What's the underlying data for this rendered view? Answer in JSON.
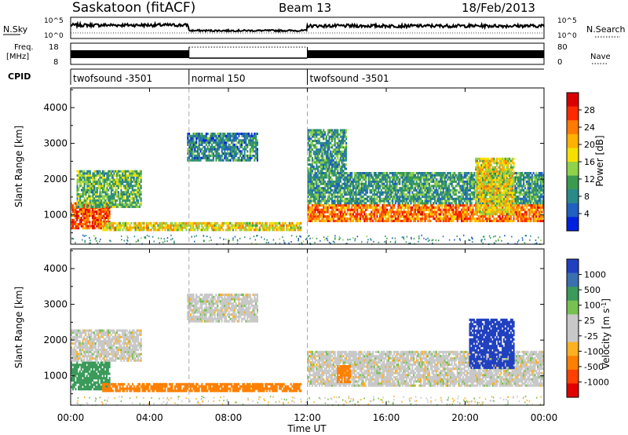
{
  "header": {
    "station": "Saskatoon (fitACF)",
    "beam": "Beam 13",
    "date": "18/Feb/2013"
  },
  "summary_panels": {
    "nsky_label": "N.Sky",
    "nsearch_label": "N.Search",
    "freq_label_line1": "Freq.",
    "freq_label_line2": "[MHz]",
    "nave_label": "Nave",
    "cpid_label": "CPID",
    "nsky_ticks": [
      "10^5",
      "10^0"
    ],
    "nsearch_ticks": [
      "10^5",
      "10^0"
    ],
    "freq_ticks": [
      "18",
      "8"
    ],
    "nave_ticks": [
      "80",
      "0"
    ],
    "cpid_segments": [
      {
        "label": "twofsound -3501",
        "start_hour": 0,
        "end_hour": 6
      },
      {
        "label": "normal 150",
        "start_hour": 6,
        "end_hour": 12
      },
      {
        "label": "twofsound -3501",
        "start_hour": 12,
        "end_hour": 24
      }
    ]
  },
  "power_panel": {
    "ylabel": "Slant Range [km]",
    "cbar_label": "Power [dB]",
    "cbar_ticks": [
      "28",
      "24",
      "20",
      "16",
      "12",
      "8",
      "4"
    ],
    "cbar_colors": [
      "#d80000",
      "#ff2a00",
      "#ff7a00",
      "#ffb000",
      "#f5e000",
      "#90d24a",
      "#3a9a50",
      "#2a8a8a",
      "#2060c0",
      "#0020e0"
    ]
  },
  "velocity_panel": {
    "ylabel": "Slant Range [km]",
    "cbar_label": "Velocity [m s",
    "cbar_label_sup": "-1",
    "cbar_label_end": "]",
    "cbar_ticks": [
      "1000",
      "500",
      "100",
      "25",
      "-25",
      "-100",
      "-500",
      "-1000"
    ],
    "cbar_colors": [
      "#2040c0",
      "#3a70b0",
      "#3a9a5a",
      "#78c050",
      "#c8c8c8",
      "#c8c8c8",
      "#ffb020",
      "#ff8000",
      "#ff4000",
      "#e00000"
    ]
  },
  "xaxis": {
    "label": "Time UT",
    "ticks": [
      "00:00",
      "04:00",
      "08:00",
      "12:00",
      "16:00",
      "20:00",
      "00:00"
    ]
  },
  "chart_data": [
    {
      "type": "heatmap",
      "title": "Power",
      "ylabel": "Slant Range [km]",
      "xlabel": "",
      "xlim": [
        0,
        24
      ],
      "ylim": [
        180,
        4550
      ],
      "yticks": [
        1000,
        2000,
        3000,
        4000
      ],
      "colorbar": {
        "label": "Power [dB]",
        "range": [
          0,
          32
        ],
        "ticks": [
          4,
          8,
          12,
          16,
          20,
          24,
          28
        ]
      },
      "regions": [
        {
          "t0": 0,
          "t1": 2.0,
          "r0": 600,
          "r1": 1350,
          "value": 26
        },
        {
          "t0": 0.3,
          "t1": 3.6,
          "r0": 1200,
          "r1": 2250,
          "value": 12
        },
        {
          "t0": 1.6,
          "t1": 11.7,
          "r0": 550,
          "r1": 800,
          "value": 18
        },
        {
          "t0": 5.9,
          "t1": 9.5,
          "r0": 2500,
          "r1": 3300,
          "value": 8
        },
        {
          "t0": 12.0,
          "t1": 24,
          "r0": 800,
          "r1": 1300,
          "value": 24
        },
        {
          "t0": 12.0,
          "t1": 14.0,
          "r0": 1300,
          "r1": 3400,
          "value": 10
        },
        {
          "t0": 14.0,
          "t1": 24,
          "r0": 1300,
          "r1": 2200,
          "value": 10
        },
        {
          "t0": 20.5,
          "t1": 22.5,
          "r0": 1000,
          "r1": 2600,
          "value": 18
        }
      ]
    },
    {
      "type": "heatmap",
      "title": "Velocity",
      "ylabel": "Slant Range [km]",
      "xlabel": "Time UT",
      "xlim": [
        0,
        24
      ],
      "ylim": [
        180,
        4550
      ],
      "yticks": [
        1000,
        2000,
        3000,
        4000
      ],
      "colorbar": {
        "label": "Velocity [m s-1]",
        "ticks": [
          1000,
          500,
          100,
          25,
          -25,
          -100,
          -500,
          -1000
        ]
      },
      "regions": [
        {
          "t0": 0,
          "t1": 2.0,
          "r0": 600,
          "r1": 1400,
          "value": 150
        },
        {
          "t0": 0,
          "t1": 3.6,
          "r0": 1400,
          "r1": 2300,
          "value": 0
        },
        {
          "t0": 1.6,
          "t1": 11.7,
          "r0": 550,
          "r1": 800,
          "value": -150
        },
        {
          "t0": 5.9,
          "t1": 9.5,
          "r0": 2500,
          "r1": 3300,
          "value": 0
        },
        {
          "t0": 12.0,
          "t1": 24,
          "r0": 700,
          "r1": 1700,
          "value": 0
        },
        {
          "t0": 13.5,
          "t1": 14.2,
          "r0": 800,
          "r1": 1300,
          "value": -300
        },
        {
          "t0": 20.2,
          "t1": 22.5,
          "r0": 1200,
          "r1": 2600,
          "value": 600
        }
      ]
    }
  ]
}
